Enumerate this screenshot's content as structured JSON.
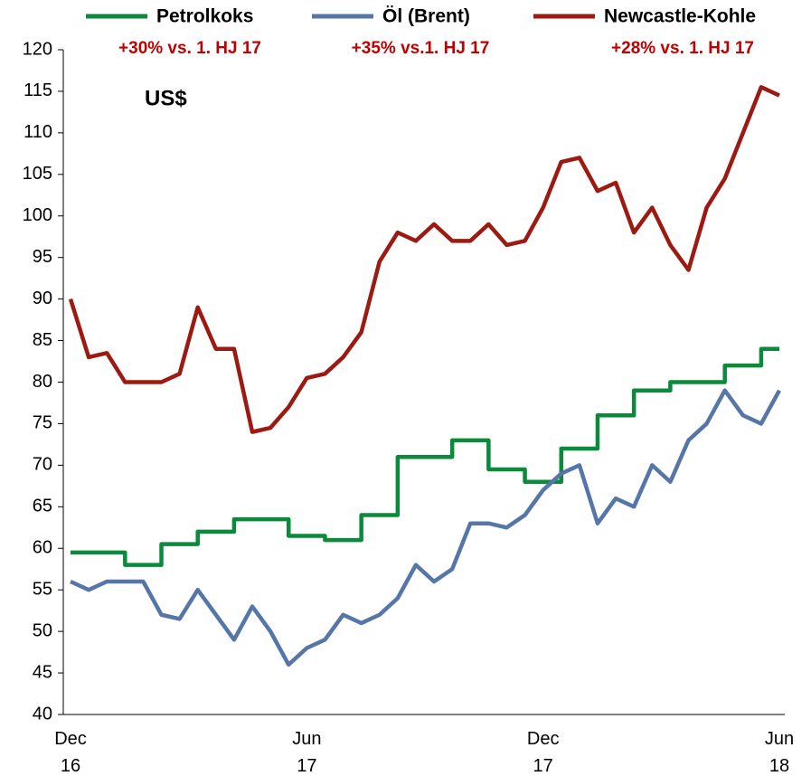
{
  "chart_data": {
    "type": "line",
    "unit_label": "US$",
    "categories": [
      "Dec 16",
      null,
      null,
      null,
      null,
      null,
      null,
      null,
      null,
      null,
      null,
      null,
      null,
      "Jun 17",
      null,
      null,
      null,
      null,
      null,
      null,
      null,
      null,
      null,
      null,
      null,
      null,
      "Dec 17",
      null,
      null,
      null,
      null,
      null,
      null,
      null,
      null,
      null,
      null,
      null,
      null,
      "Jun 18"
    ],
    "series": [
      {
        "name": "Petrolkoks",
        "color": "#0a8a3a",
        "annotation": "+30% vs. 1. HJ 17",
        "step": true,
        "values": [
          59.5,
          59.5,
          59.5,
          58,
          58,
          60.5,
          60.5,
          62,
          62,
          63.5,
          63.5,
          63.5,
          61.5,
          61.5,
          61,
          61,
          64,
          64,
          71,
          71,
          71,
          73,
          73,
          69.5,
          69.5,
          68,
          68,
          72,
          72,
          76,
          76,
          79,
          79,
          80,
          80,
          80,
          82,
          82,
          84,
          84
        ]
      },
      {
        "name": "Öl (Brent)",
        "color": "#5676a8",
        "annotation": "+35% vs.1. HJ 17",
        "values": [
          56,
          55,
          56,
          56,
          56,
          52,
          51.5,
          55,
          52,
          49,
          53,
          50,
          46,
          48,
          49,
          52,
          51,
          52,
          54,
          58,
          56,
          57.5,
          63,
          63,
          62.5,
          64,
          67,
          69,
          70,
          63,
          66,
          65,
          70,
          68,
          73,
          75,
          79,
          76,
          75,
          79
        ]
      },
      {
        "name": "Newcastle-Kohle",
        "color": "#9c1a12",
        "annotation": "+28% vs. 1. HJ 17",
        "values": [
          90,
          83,
          83.5,
          80,
          80,
          80,
          81,
          89,
          84,
          84,
          74,
          74.5,
          77,
          80.5,
          81,
          83,
          86,
          94.5,
          98,
          97,
          99,
          97,
          97,
          99,
          96.5,
          97,
          101,
          106.5,
          107,
          103,
          104,
          98,
          101,
          96.5,
          93.5,
          101,
          104.5,
          110,
          115.5,
          114.5
        ]
      }
    ],
    "ylim": [
      40,
      120
    ],
    "yticks": [
      40,
      45,
      50,
      55,
      60,
      65,
      70,
      75,
      80,
      85,
      90,
      95,
      100,
      105,
      110,
      115,
      120
    ],
    "grid": false
  }
}
